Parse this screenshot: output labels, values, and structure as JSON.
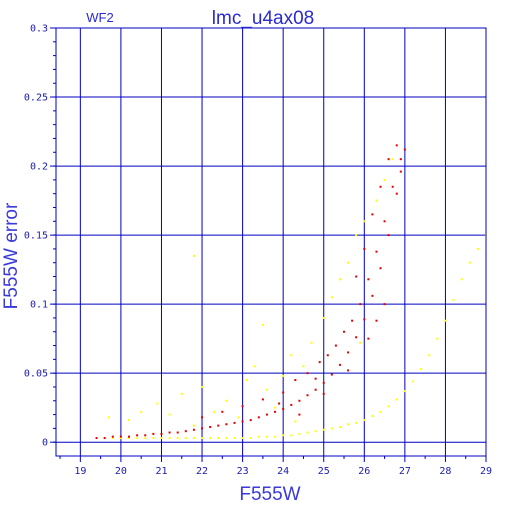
{
  "chart_data": {
    "type": "scatter",
    "title": "lmc_u4ax08",
    "chip_label": "WF2",
    "xlabel": "F555W",
    "ylabel": "F555W error",
    "xlim": [
      18.4,
      29.0
    ],
    "ylim": [
      -0.01,
      0.3
    ],
    "x_ticks": [
      19,
      20,
      21,
      22,
      23,
      24,
      25,
      26,
      27,
      28,
      29
    ],
    "y_ticks": [
      0,
      0.05,
      0.1,
      0.15,
      0.2,
      0.25,
      0.3
    ],
    "y_tick_labels": [
      "0",
      "0.05",
      "0.1",
      "0.15",
      "0.2",
      "0.25",
      "0.3"
    ],
    "grid": true,
    "colors": {
      "axes": "#0000c0",
      "grid": "#0000c0",
      "text": "#2a2ad0",
      "series_red": "#e00000",
      "series_yellow": "#ffff00"
    },
    "series": [
      {
        "color": "#ffff00",
        "marker_size": 2,
        "points": [
          [
            19.6,
            0.003
          ],
          [
            19.8,
            0.003
          ],
          [
            20.0,
            0.003
          ],
          [
            20.2,
            0.003
          ],
          [
            20.4,
            0.003
          ],
          [
            20.6,
            0.003
          ],
          [
            20.8,
            0.003
          ],
          [
            21.0,
            0.003
          ],
          [
            21.2,
            0.003
          ],
          [
            21.4,
            0.003
          ],
          [
            21.6,
            0.003
          ],
          [
            21.8,
            0.003
          ],
          [
            22.0,
            0.003
          ],
          [
            22.2,
            0.003
          ],
          [
            22.4,
            0.003
          ],
          [
            22.6,
            0.003
          ],
          [
            22.8,
            0.003
          ],
          [
            23.0,
            0.003
          ],
          [
            23.2,
            0.003
          ],
          [
            23.4,
            0.004
          ],
          [
            23.6,
            0.004
          ],
          [
            23.8,
            0.004
          ],
          [
            24.0,
            0.005
          ],
          [
            24.2,
            0.005
          ],
          [
            24.4,
            0.006
          ],
          [
            24.6,
            0.007
          ],
          [
            24.8,
            0.008
          ],
          [
            25.0,
            0.009
          ],
          [
            25.2,
            0.01
          ],
          [
            25.4,
            0.011
          ],
          [
            25.6,
            0.013
          ],
          [
            25.8,
            0.014
          ],
          [
            26.0,
            0.016
          ],
          [
            26.2,
            0.019
          ],
          [
            26.4,
            0.022
          ],
          [
            26.6,
            0.026
          ],
          [
            26.8,
            0.031
          ],
          [
            27.0,
            0.037
          ],
          [
            27.2,
            0.044
          ],
          [
            27.4,
            0.053
          ],
          [
            27.6,
            0.063
          ],
          [
            27.8,
            0.075
          ],
          [
            28.0,
            0.088
          ],
          [
            28.2,
            0.103
          ],
          [
            28.4,
            0.118
          ],
          [
            28.6,
            0.13
          ],
          [
            28.8,
            0.14
          ],
          [
            29.0,
            0.15
          ],
          [
            19.7,
            0.018
          ],
          [
            20.2,
            0.016
          ],
          [
            20.5,
            0.022
          ],
          [
            20.9,
            0.028
          ],
          [
            21.2,
            0.02
          ],
          [
            21.5,
            0.035
          ],
          [
            21.8,
            0.012
          ],
          [
            22.0,
            0.04
          ],
          [
            22.3,
            0.022
          ],
          [
            22.6,
            0.03
          ],
          [
            22.9,
            0.018
          ],
          [
            23.1,
            0.045
          ],
          [
            23.3,
            0.055
          ],
          [
            23.6,
            0.038
          ],
          [
            23.8,
            0.025
          ],
          [
            24.0,
            0.048
          ],
          [
            24.2,
            0.063
          ],
          [
            24.5,
            0.055
          ],
          [
            24.7,
            0.072
          ],
          [
            25.0,
            0.09
          ],
          [
            25.2,
            0.105
          ],
          [
            25.4,
            0.118
          ],
          [
            25.6,
            0.13
          ],
          [
            25.8,
            0.15
          ],
          [
            26.0,
            0.16
          ],
          [
            26.3,
            0.175
          ],
          [
            26.5,
            0.19
          ],
          [
            26.7,
            0.205
          ],
          [
            23.5,
            0.085
          ],
          [
            21.8,
            0.135
          ],
          [
            24.3,
            0.015
          ],
          [
            25.9,
            0.072
          ]
        ]
      },
      {
        "color": "#e00000",
        "marker_size": 2,
        "points": [
          [
            19.4,
            0.003
          ],
          [
            19.6,
            0.003
          ],
          [
            19.8,
            0.004
          ],
          [
            20.0,
            0.004
          ],
          [
            20.2,
            0.004
          ],
          [
            20.4,
            0.005
          ],
          [
            20.6,
            0.005
          ],
          [
            20.8,
            0.006
          ],
          [
            21.0,
            0.006
          ],
          [
            21.2,
            0.007
          ],
          [
            21.4,
            0.007
          ],
          [
            21.6,
            0.008
          ],
          [
            21.8,
            0.009
          ],
          [
            22.0,
            0.01
          ],
          [
            22.2,
            0.011
          ],
          [
            22.4,
            0.012
          ],
          [
            22.6,
            0.013
          ],
          [
            22.8,
            0.014
          ],
          [
            23.0,
            0.015
          ],
          [
            23.2,
            0.016
          ],
          [
            23.4,
            0.018
          ],
          [
            23.6,
            0.02
          ],
          [
            23.8,
            0.022
          ],
          [
            24.0,
            0.024
          ],
          [
            24.2,
            0.027
          ],
          [
            24.4,
            0.03
          ],
          [
            24.6,
            0.034
          ],
          [
            24.8,
            0.038
          ],
          [
            25.0,
            0.043
          ],
          [
            25.2,
            0.049
          ],
          [
            25.4,
            0.056
          ],
          [
            25.6,
            0.065
          ],
          [
            25.8,
            0.076
          ],
          [
            26.0,
            0.089
          ],
          [
            26.2,
            0.106
          ],
          [
            26.4,
            0.126
          ],
          [
            26.6,
            0.15
          ],
          [
            26.8,
            0.18
          ],
          [
            26.9,
            0.196
          ],
          [
            27.0,
            0.212
          ],
          [
            22.0,
            0.018
          ],
          [
            22.5,
            0.022
          ],
          [
            23.0,
            0.026
          ],
          [
            23.5,
            0.031
          ],
          [
            24.0,
            0.036
          ],
          [
            24.3,
            0.045
          ],
          [
            24.6,
            0.05
          ],
          [
            24.9,
            0.058
          ],
          [
            25.1,
            0.063
          ],
          [
            25.3,
            0.07
          ],
          [
            25.5,
            0.08
          ],
          [
            25.7,
            0.088
          ],
          [
            25.9,
            0.1
          ],
          [
            26.1,
            0.118
          ],
          [
            26.3,
            0.138
          ],
          [
            26.5,
            0.16
          ],
          [
            26.7,
            0.185
          ],
          [
            26.9,
            0.205
          ],
          [
            25.8,
            0.12
          ],
          [
            26.0,
            0.14
          ],
          [
            26.2,
            0.165
          ],
          [
            26.4,
            0.185
          ],
          [
            26.6,
            0.205
          ],
          [
            26.8,
            0.215
          ],
          [
            23.9,
            0.028
          ],
          [
            24.4,
            0.02
          ],
          [
            25.0,
            0.035
          ],
          [
            25.6,
            0.052
          ],
          [
            26.1,
            0.075
          ],
          [
            26.5,
            0.1
          ],
          [
            26.3,
            0.088
          ],
          [
            24.8,
            0.046
          ]
        ]
      }
    ]
  }
}
